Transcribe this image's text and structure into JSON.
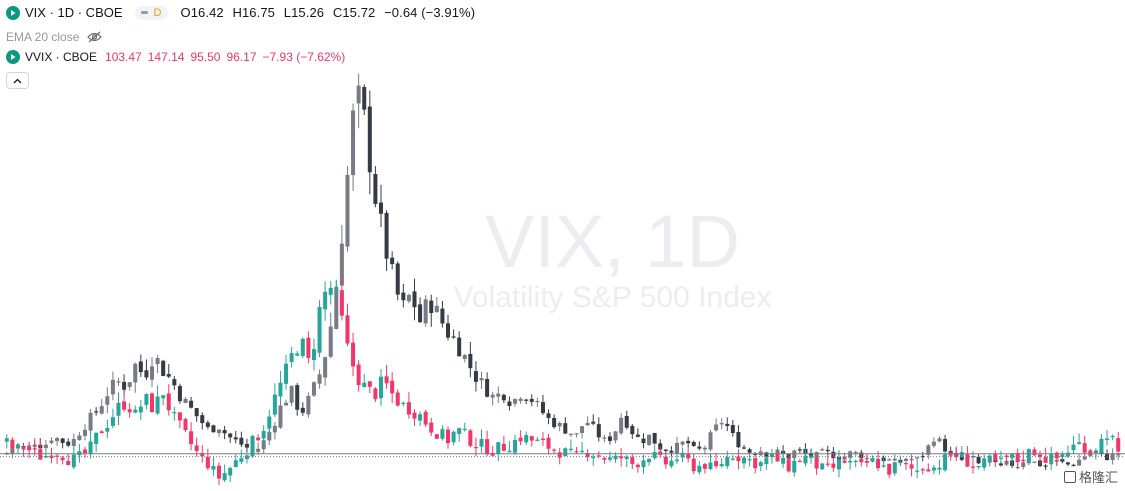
{
  "legend": {
    "symbol1": "VIX · 1D · CBOE",
    "status_badge": "D",
    "ohlc": [
      {
        "k": "O",
        "v": "16.42"
      },
      {
        "k": "H",
        "v": "16.75"
      },
      {
        "k": "L",
        "v": "15.26"
      },
      {
        "k": "C",
        "v": "15.72"
      }
    ],
    "change": "−0.64 (−3.91%)",
    "indicator": "EMA 20 close",
    "symbol2": "VVIX · CBOE",
    "vvix_values": [
      "103.47",
      "147.14",
      "95.50",
      "96.17",
      "−7.93 (−7.62%)"
    ]
  },
  "watermark": {
    "symbol": "VIX, 1D",
    "description": "Volatility S&P 500 Index"
  },
  "brand": "格隆汇",
  "chart_data": {
    "type": "candlestick",
    "series": [
      {
        "name": "VIX",
        "color_up": "#787b86",
        "color_down": "#363a45",
        "path": [
          15.8,
          17.5,
          16.2,
          18,
          17,
          19,
          18,
          17.5,
          20,
          22,
          24,
          27,
          29,
          28,
          32,
          30,
          34,
          31,
          29,
          26,
          24,
          22,
          20,
          21,
          19,
          18,
          17,
          16,
          18,
          21,
          25,
          27,
          23,
          26,
          30,
          36,
          48,
          65,
          82,
          76,
          64,
          55,
          48,
          42,
          45,
          40,
          44,
          41,
          38,
          36,
          33,
          30,
          28,
          26,
          27,
          25,
          27,
          26,
          24,
          22,
          21,
          20,
          19,
          22,
          20,
          18,
          19,
          23,
          20,
          18,
          19,
          17,
          16.5,
          17,
          18,
          16,
          17,
          20,
          22,
          19,
          17,
          16,
          16.5,
          15.5,
          16,
          15,
          16.5,
          15.5,
          15.2,
          16,
          15.5,
          15,
          16,
          15.5,
          14.5,
          15,
          14.5,
          14,
          15,
          14.5,
          16,
          19,
          17,
          15,
          14.5,
          15,
          13.5,
          14.5,
          13,
          14,
          13.5,
          15,
          14,
          13.5,
          14.5,
          14,
          13.5,
          15,
          16,
          15.5,
          15,
          15.8
        ]
      },
      {
        "name": "VVIX",
        "color_up": "#26a69a",
        "color_down": "#f23669",
        "path": [
          100,
          98,
          99,
          97,
          96,
          98,
          97,
          95,
          96,
          98,
          103,
          106,
          110,
          112,
          108,
          113,
          110,
          115,
          108,
          104,
          100,
          96,
          94,
          90,
          92,
          95,
          98,
          101,
          105,
          112,
          118,
          125,
          130,
          122,
          138,
          146,
          142,
          128,
          120,
          116,
          114,
          118,
          114,
          111,
          110,
          108,
          105,
          103,
          101,
          104,
          102,
          100,
          99,
          98,
          99,
          100,
          102,
          101,
          100,
          99,
          98,
          97,
          96,
          98,
          97,
          96,
          95,
          96,
          94,
          95,
          97,
          95,
          94,
          96,
          95,
          93,
          94,
          92,
          95,
          97,
          96,
          95,
          94,
          96,
          95,
          93,
          95,
          96,
          94,
          92,
          93,
          95,
          94,
          93,
          95,
          94,
          92,
          94,
          93,
          92,
          94,
          93,
          95,
          97,
          96,
          94,
          93,
          95,
          94,
          96,
          95,
          97,
          98,
          96,
          95,
          97,
          99,
          100,
          98,
          100,
          104,
          96
        ]
      }
    ],
    "last_values": {
      "VIX": 15.72,
      "VVIX": 96.17
    },
    "legend_placement": "top-left"
  }
}
